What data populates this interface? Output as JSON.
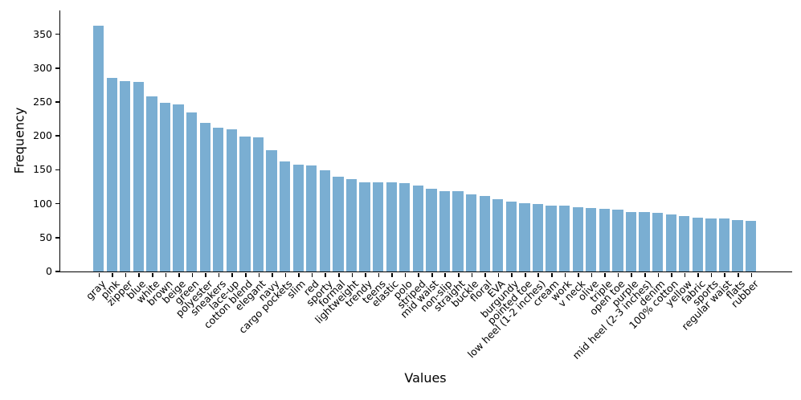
{
  "chart_data": {
    "type": "bar",
    "title": "",
    "xlabel": "Values",
    "ylabel": "Frequency",
    "bar_color": "#7aaed2",
    "axis_color": "#000000",
    "grid": false,
    "legend_position": "none",
    "ylim": [
      0,
      385
    ],
    "yticks": [
      0,
      50,
      100,
      150,
      200,
      250,
      300,
      350
    ],
    "x_tick_rotation": 45,
    "categories": [
      "gray",
      "pink",
      "zipper",
      "blue",
      "white",
      "brown",
      "beige",
      "green",
      "polyester",
      "sneakers",
      "lace-up",
      "cotton blend",
      "elegant",
      "navy",
      "cargo pockets",
      "slim",
      "red",
      "sporty",
      "formal",
      "lightweight",
      "trendy",
      "teens",
      "elastic",
      "polo",
      "striped",
      "mid waist",
      "non-slip",
      "straight",
      "buckle",
      "floral",
      "EVA",
      "burgundy",
      "pointed toe",
      "low heel (1-2 inches)",
      "cream",
      "work",
      "v neck",
      "olive",
      "triple",
      "open toe",
      "purple",
      "mid heel (2-3 inches)",
      "denim",
      "100% cotton",
      "yellow",
      "fabric",
      "sports",
      "regular waist",
      "flats",
      "rubber"
    ],
    "values": [
      362,
      285,
      281,
      279,
      258,
      249,
      247,
      234,
      219,
      212,
      210,
      199,
      198,
      179,
      162,
      157,
      156,
      149,
      140,
      136,
      132,
      132,
      131,
      130,
      127,
      122,
      119,
      118,
      114,
      111,
      107,
      103,
      101,
      100,
      97,
      97,
      95,
      94,
      92,
      91,
      88,
      88,
      86,
      84,
      82,
      79,
      78,
      78,
      76,
      75
    ]
  }
}
